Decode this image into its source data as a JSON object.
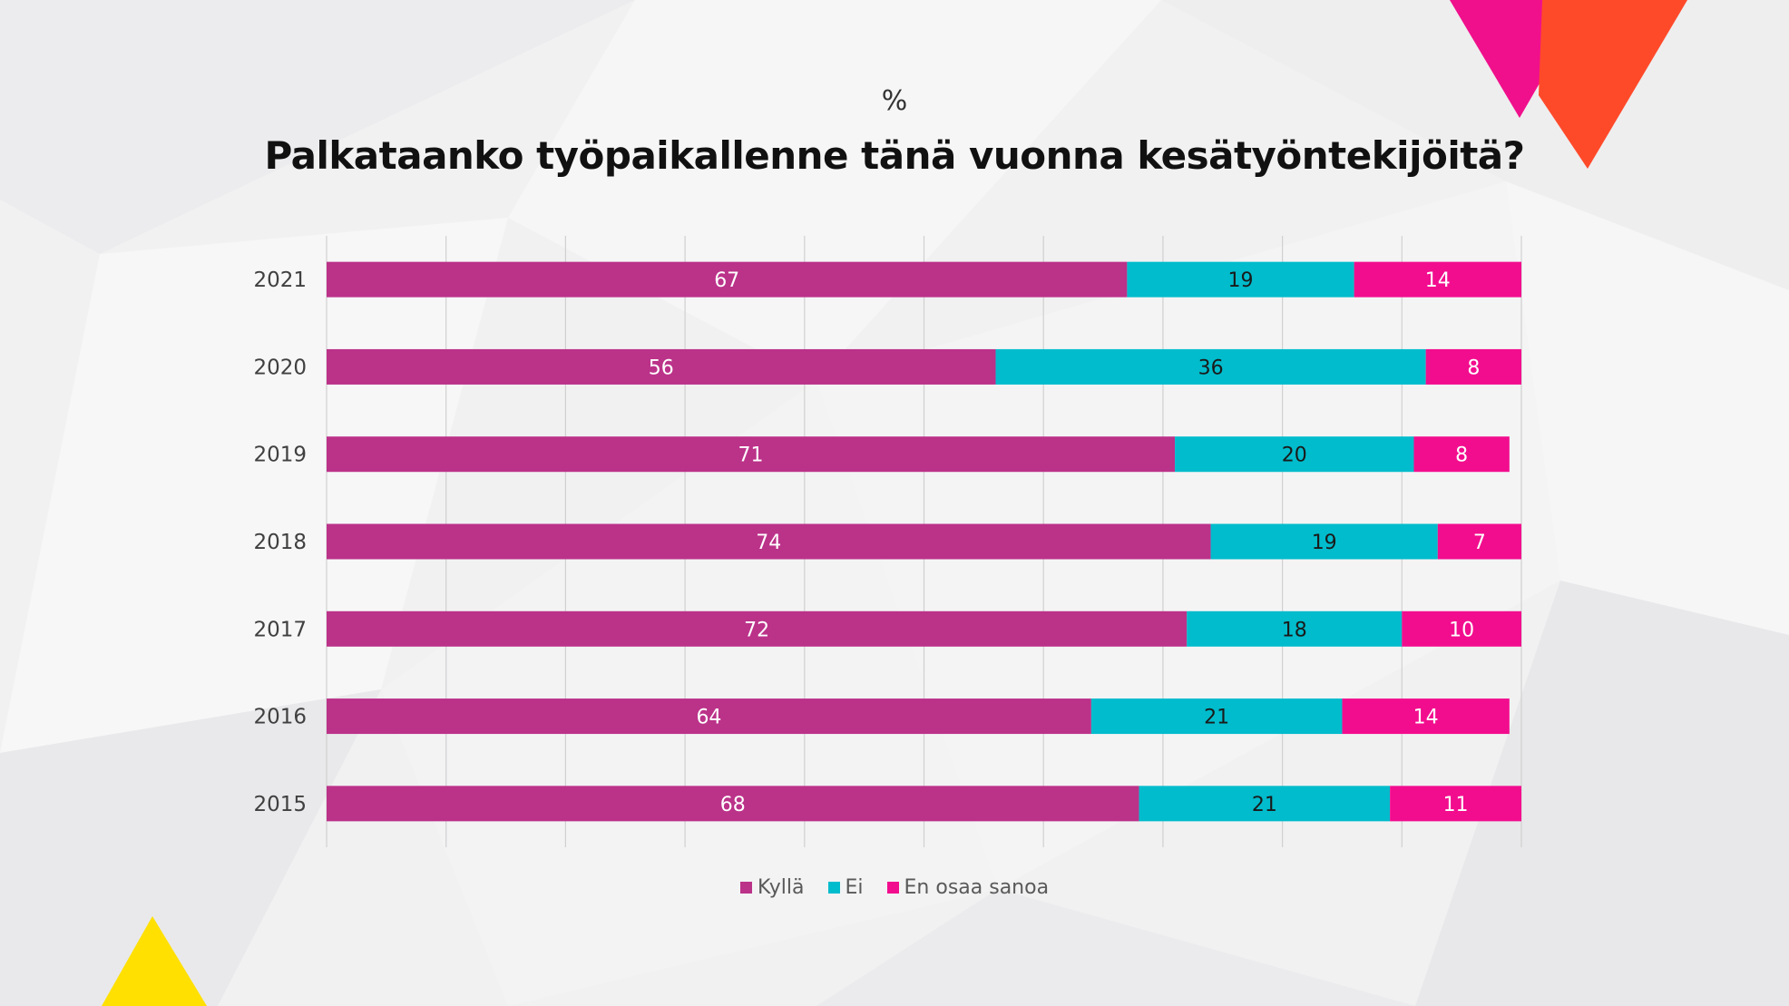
{
  "colors": {
    "kylla": "#bb3289",
    "ei": "#00bccc",
    "en_osaa": "#f20d8e",
    "grid": "#d0d0d0",
    "axis_label": "#404040",
    "bar_label": "#ffffff",
    "bar_label_dark": "#1a1a1a"
  },
  "chart_data": {
    "type": "bar",
    "orientation": "horizontal",
    "stacked": true,
    "unit_label": "%",
    "title": "Palkataanko työpaikallenne tänä vuonna kesätyöntekijöitä?",
    "categories": [
      "2021",
      "2020",
      "2019",
      "2018",
      "2017",
      "2016",
      "2015"
    ],
    "series": [
      {
        "name": "Kyllä",
        "values": [
          67,
          56,
          71,
          74,
          72,
          64,
          68
        ]
      },
      {
        "name": "Ei",
        "values": [
          19,
          36,
          20,
          19,
          18,
          21,
          21
        ]
      },
      {
        "name": "En osaa sanoa",
        "values": [
          14,
          8,
          8,
          7,
          10,
          14,
          11
        ]
      }
    ],
    "xlim": [
      0,
      100
    ],
    "grid": true,
    "legend_position": "bottom"
  }
}
